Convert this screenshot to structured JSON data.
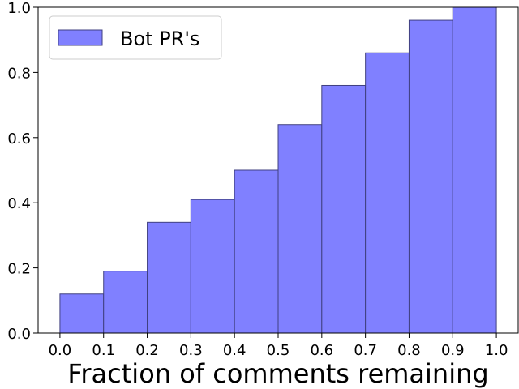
{
  "chart_data": {
    "type": "bar",
    "subtype": "histogram",
    "bin_edges": [
      0.0,
      0.1,
      0.2,
      0.3,
      0.4,
      0.5,
      0.6,
      0.7,
      0.8,
      0.9,
      1.0
    ],
    "series": [
      {
        "name": "Bot PR's",
        "values": [
          0.12,
          0.19,
          0.34,
          0.41,
          0.5,
          0.64,
          0.76,
          0.86,
          0.96,
          1.0
        ],
        "color": "#8080ff",
        "edge_color": "#404080"
      }
    ],
    "xlabel": "Fraction of comments remaining",
    "ylabel": "",
    "title": "",
    "xlim": [
      -0.05,
      1.05
    ],
    "ylim": [
      0.0,
      1.0
    ],
    "x_ticks": [
      "0.0",
      "0.1",
      "0.2",
      "0.3",
      "0.4",
      "0.5",
      "0.6",
      "0.7",
      "0.8",
      "0.9",
      "1.0"
    ],
    "y_ticks": [
      "0.0",
      "0.2",
      "0.4",
      "0.6",
      "0.8",
      "1.0"
    ],
    "grid": false,
    "legend": {
      "position": "top-left",
      "entries": [
        "Bot PR's"
      ]
    }
  }
}
